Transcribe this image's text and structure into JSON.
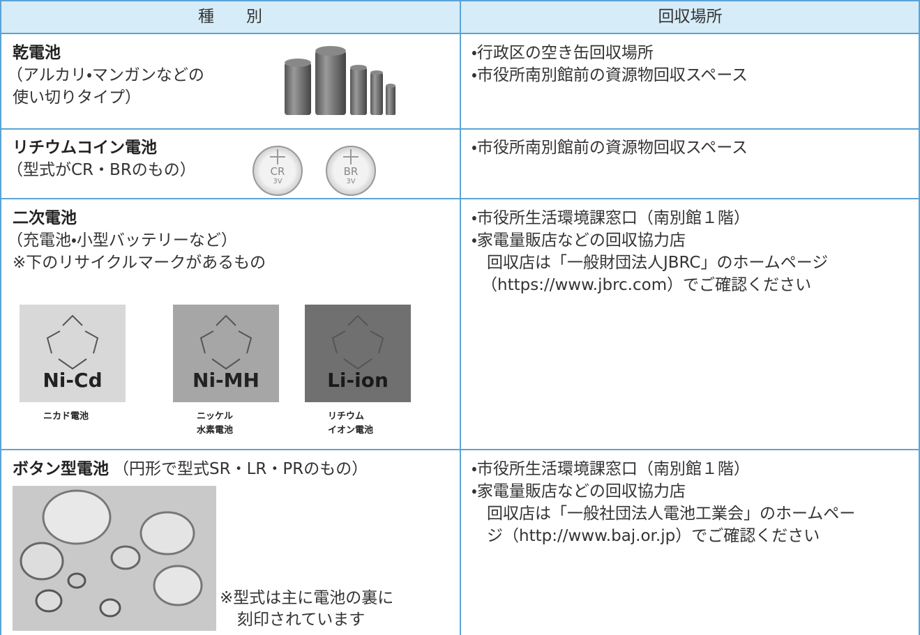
{
  "header": {
    "columns": [
      "種　　別",
      "回収場所"
    ]
  },
  "rows": [
    {
      "title": "乾電池",
      "desc": [
        "（アルカリ・マンガンなどの",
        "使い切りタイプ）"
      ],
      "places": [
        "・行政区の空き缶回収場所",
        "・市役所南別館前の資源物回収スペース"
      ]
    },
    {
      "title": "リチウムコイン電池",
      "desc": [
        "（型式がCR・BRのもの）"
      ],
      "coins": [
        {
          "code": "CR",
          "volt": "3V"
        },
        {
          "code": "BR",
          "volt": "3V"
        }
      ],
      "places": [
        "・市役所南別館前の資源物回収スペース"
      ]
    },
    {
      "title": "二次電池",
      "desc": [
        "（充電池・小型バッテリーなど）",
        "※下のリサイクルマークがあるもの"
      ],
      "marks": [
        {
          "code": "Ni-Cd",
          "name": [
            "ニカド電池"
          ]
        },
        {
          "code": "Ni-MH",
          "name": [
            "ニッケル",
            "水素電池"
          ]
        },
        {
          "code": "Li-ion",
          "name": [
            "リチウム",
            "イオン電池"
          ]
        }
      ],
      "places": [
        "・市役所生活環境課窓口（南別館１階）",
        "・家電量販店などの回収協力店",
        "回収店は「一般財団法人JBRC」のホームページ",
        "（https://www.jbrc.com）でご確認ください"
      ]
    },
    {
      "title": "ボタン型電池",
      "title_note": "（円形で型式SR・LR・PRのもの）",
      "note": [
        "※型式は主に電池の裏に",
        "刻印されています"
      ],
      "places": [
        "・市役所生活環境課窓口（南別館１階）",
        "・家電量販店などの回収協力店",
        "回収店は「一般社団法人電池工業会」のホームペー",
        "ジ（http://www.baj.or.jp）でご確認ください"
      ]
    }
  ]
}
